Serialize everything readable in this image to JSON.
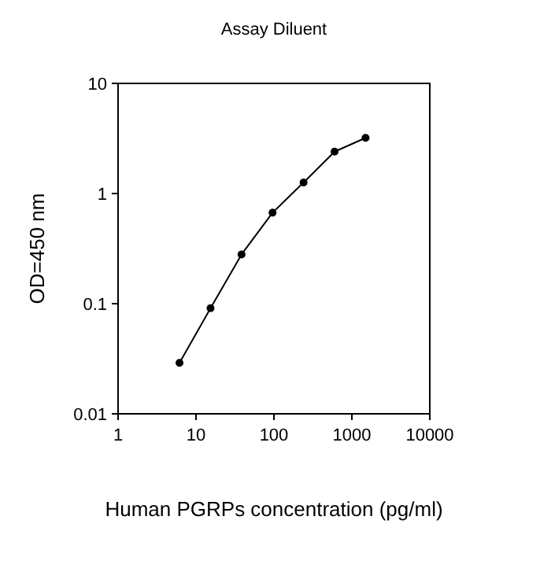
{
  "chart_data": {
    "type": "line",
    "title": "Assay Diluent",
    "xlabel": "Human PGRPs concentration (pg/ml)",
    "ylabel": "OD=450 nm",
    "log": "xy",
    "x": [
      6.14,
      15.36,
      38.4,
      96,
      240,
      600,
      1500
    ],
    "series": [
      {
        "color": "#000000",
        "values": [
          0.029,
          0.091,
          0.28,
          0.67,
          1.26,
          2.4,
          3.2
        ]
      }
    ],
    "xlim": [
      1,
      10000
    ],
    "xticks": [
      1,
      10,
      100,
      1000,
      10000
    ],
    "ylim": [
      0.01,
      10
    ],
    "yticks": [
      0.01,
      0.1,
      1,
      10
    ],
    "marker": "circle",
    "line_style": "solid",
    "grid": false
  }
}
